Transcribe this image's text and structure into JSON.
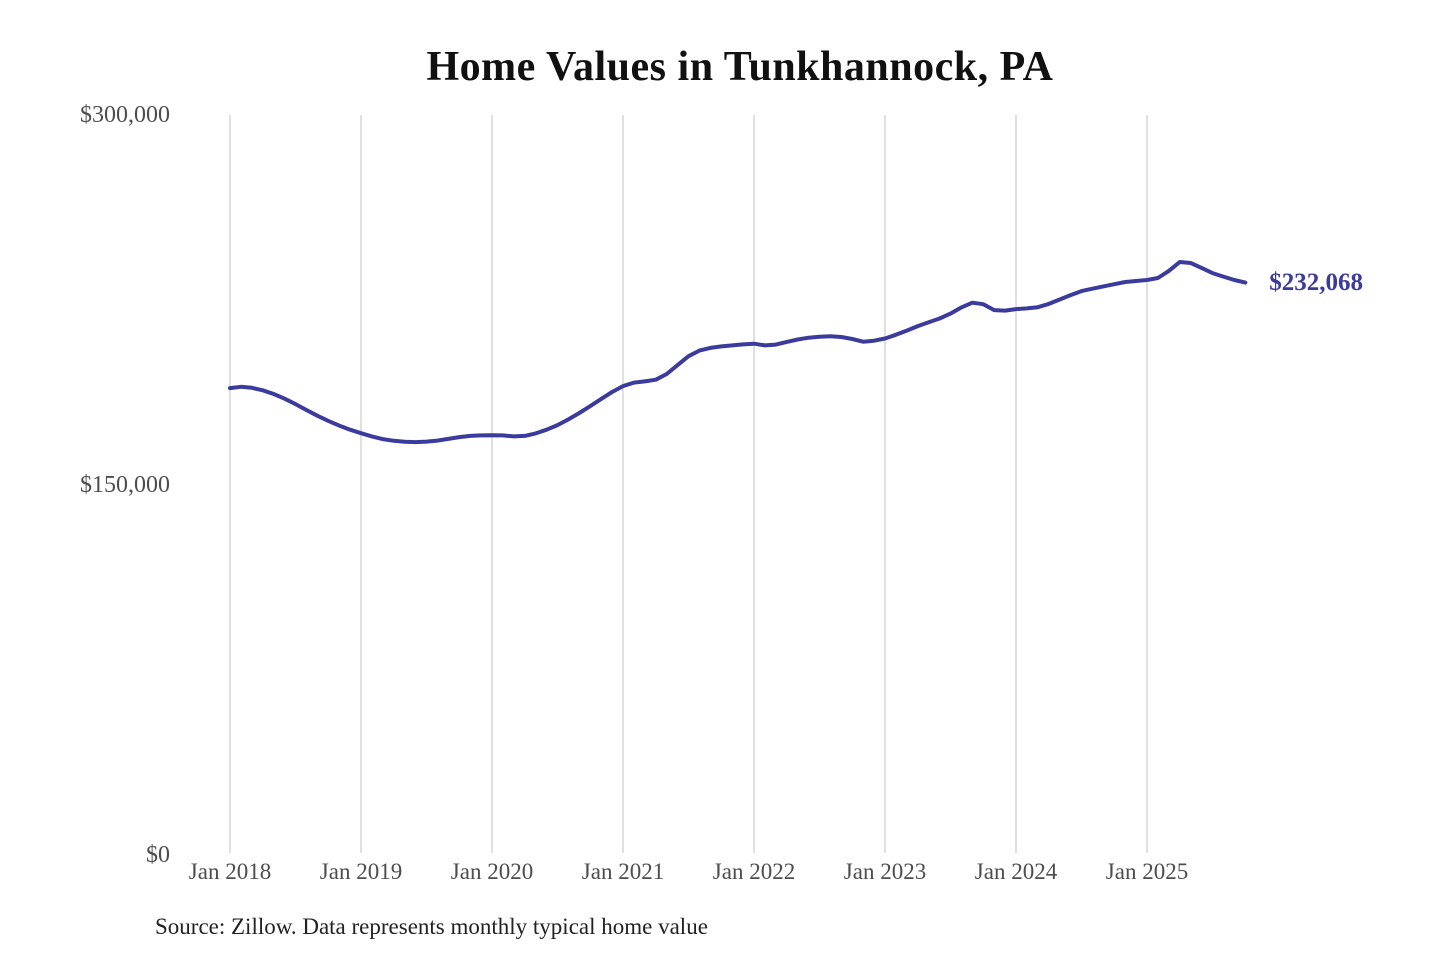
{
  "title": "Home Values in Tunkhannock, PA",
  "source_note": "Source: Zillow. Data represents monthly typical home value",
  "end_label": "$232,068",
  "colors": {
    "line": "#3b3b9e",
    "end_label": "#3b3b9e",
    "grid": "#cccccc",
    "axis_text": "#4d4d4d",
    "title_text": "#111111",
    "source_text": "#222222",
    "background": "#ffffff"
  },
  "y_axis": {
    "tick_labels": [
      "$300,000",
      "$150,000",
      "$0"
    ]
  },
  "x_axis": {
    "tick_labels": [
      "Jan 2018",
      "Jan 2019",
      "Jan 2020",
      "Jan 2021",
      "Jan 2022",
      "Jan 2023",
      "Jan 2024",
      "Jan 2025"
    ]
  },
  "chart_data": {
    "type": "line",
    "title": "Home Values in Tunkhannock, PA",
    "xlabel": "",
    "ylabel": "",
    "ylim": [
      0,
      300000
    ],
    "y_ticks": [
      0,
      150000,
      300000
    ],
    "grid": "vertical-yearly",
    "legend": false,
    "end_annotation": {
      "text": "$232,068",
      "value": 232068
    },
    "x": [
      "2018-01",
      "2018-02",
      "2018-03",
      "2018-04",
      "2018-05",
      "2018-06",
      "2018-07",
      "2018-08",
      "2018-09",
      "2018-10",
      "2018-11",
      "2018-12",
      "2019-01",
      "2019-02",
      "2019-03",
      "2019-04",
      "2019-05",
      "2019-06",
      "2019-07",
      "2019-08",
      "2019-09",
      "2019-10",
      "2019-11",
      "2019-12",
      "2020-01",
      "2020-02",
      "2020-03",
      "2020-04",
      "2020-05",
      "2020-06",
      "2020-07",
      "2020-08",
      "2020-09",
      "2020-10",
      "2020-11",
      "2020-12",
      "2021-01",
      "2021-02",
      "2021-03",
      "2021-04",
      "2021-05",
      "2021-06",
      "2021-07",
      "2021-08",
      "2021-09",
      "2021-10",
      "2021-11",
      "2021-12",
      "2022-01",
      "2022-02",
      "2022-03",
      "2022-04",
      "2022-05",
      "2022-06",
      "2022-07",
      "2022-08",
      "2022-09",
      "2022-10",
      "2022-11",
      "2022-12",
      "2023-01",
      "2023-02",
      "2023-03",
      "2023-04",
      "2023-05",
      "2023-06",
      "2023-07",
      "2023-08",
      "2023-09",
      "2023-10",
      "2023-11",
      "2023-12",
      "2024-01",
      "2024-02",
      "2024-03",
      "2024-04",
      "2024-05",
      "2024-06",
      "2024-07",
      "2024-08",
      "2024-09",
      "2024-10",
      "2024-11",
      "2024-12",
      "2025-01",
      "2025-02",
      "2025-03",
      "2025-04",
      "2025-05",
      "2025-06",
      "2025-07",
      "2025-08",
      "2025-09",
      "2025-10"
    ],
    "series": [
      {
        "name": "Monthly typical home value",
        "values": [
          189300,
          189800,
          189400,
          188400,
          186900,
          185000,
          182800,
          180400,
          178100,
          176000,
          174100,
          172400,
          171000,
          169700,
          168600,
          167900,
          167500,
          167400,
          167600,
          168000,
          168700,
          169400,
          169900,
          170100,
          170200,
          170100,
          169700,
          169900,
          170900,
          172400,
          174300,
          176600,
          179200,
          182000,
          184900,
          187700,
          190100,
          191500,
          192000,
          192700,
          195000,
          198600,
          202200,
          204500,
          205600,
          206200,
          206600,
          207000,
          207300,
          206600,
          206900,
          208000,
          209000,
          209700,
          210100,
          210300,
          210000,
          209200,
          208100,
          208500,
          209400,
          210900,
          212600,
          214400,
          216000,
          217500,
          219500,
          222000,
          223900,
          223300,
          220900,
          220700,
          221300,
          221600,
          222100,
          223400,
          225200,
          227000,
          228600,
          229600,
          230500,
          231400,
          232300,
          232700,
          233100,
          233900,
          236800,
          240400,
          240000,
          238000,
          235900,
          234500,
          233100,
          232068
        ]
      }
    ]
  }
}
